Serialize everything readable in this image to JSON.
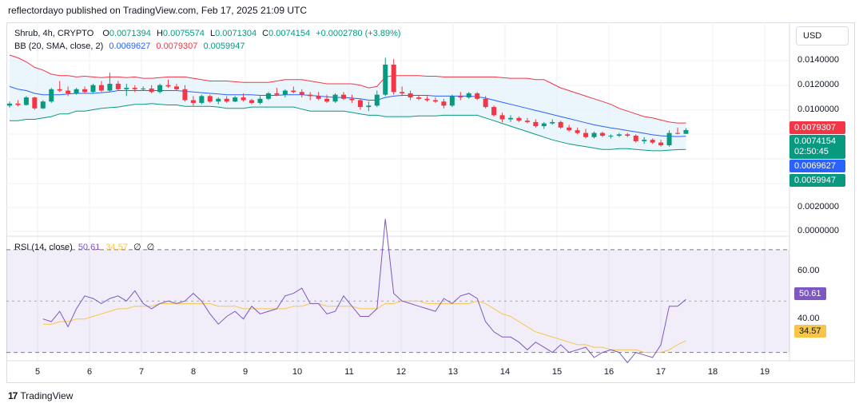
{
  "header": {
    "published": "reflectordayo published on TradingView.com, Feb 17, 2025 21:09 UTC"
  },
  "legend": {
    "symbol": "Shrub, 4h, CRYPTO",
    "o_label": "O",
    "o": "0.0071394",
    "h_label": "H",
    "h": "0.0075574",
    "l_label": "L",
    "l": "0.0071304",
    "c_label": "C",
    "c": "0.0074154",
    "change": "+0.0002780 (+3.89%)",
    "bb_label": "BB (20, SMA, close, 2)",
    "bb_basis": "0.0069627",
    "bb_upper": "0.0079307",
    "bb_lower": "0.0059947",
    "rsi_label": "RSI (14, close)",
    "rsi_value": "50.61",
    "rsi_ma": "34.57",
    "rsi_extra1": "∅",
    "rsi_extra2": "∅"
  },
  "currency": "USD",
  "price_axis": [
    "0.0140000",
    "0.0120000",
    "0.0100000",
    "0.0020000",
    "0.0000000"
  ],
  "badges": {
    "upper": "0.0079307",
    "last": "0.0074154",
    "countdown": "02:50:45",
    "basis": "0.0069627",
    "lower": "0.0059947",
    "rsi": "50.61",
    "rsi_ma": "34.57"
  },
  "rsi_axis": [
    "60.00",
    "40.00"
  ],
  "time_axis": [
    "5",
    "6",
    "7",
    "8",
    "9",
    "10",
    "11",
    "12",
    "13",
    "14",
    "15",
    "16",
    "17",
    "18",
    "19"
  ],
  "footer": {
    "brand": "TradingView",
    "logo": "17"
  },
  "colors": {
    "up": "#089981",
    "down": "#f23645",
    "basis": "#2962ff",
    "upper": "#f23645",
    "lower": "#089981",
    "rsi": "#7e57c2",
    "rsi_ma": "#f7c548",
    "band_fill": "#e3f1fb"
  },
  "chart_data": {
    "type": "candlestick",
    "candles": [
      [
        0.0092,
        0.0095,
        0.00905,
        0.00935
      ],
      [
        0.00935,
        0.0096,
        0.00915,
        0.00925
      ],
      [
        0.00925,
        0.0099,
        0.0092,
        0.0098
      ],
      [
        0.0098,
        0.00985,
        0.0089,
        0.009
      ],
      [
        0.009,
        0.0096,
        0.00895,
        0.0095
      ],
      [
        0.0095,
        0.0105,
        0.0094,
        0.0104
      ],
      [
        0.0104,
        0.011,
        0.0102,
        0.0103
      ],
      [
        0.0103,
        0.0106,
        0.0099,
        0.0101
      ],
      [
        0.0101,
        0.0105,
        0.01,
        0.0104
      ],
      [
        0.0104,
        0.0106,
        0.0101,
        0.0102
      ],
      [
        0.0102,
        0.0108,
        0.0101,
        0.0107
      ],
      [
        0.0107,
        0.011,
        0.0102,
        0.0103
      ],
      [
        0.0103,
        0.0116,
        0.0102,
        0.0108
      ],
      [
        0.0108,
        0.011,
        0.0103,
        0.0104
      ],
      [
        0.0104,
        0.0108,
        0.0099,
        0.0105
      ],
      [
        0.0105,
        0.0107,
        0.0102,
        0.0104
      ],
      [
        0.0104,
        0.0106,
        0.0103,
        0.01045
      ],
      [
        0.01045,
        0.0107,
        0.0101,
        0.0102
      ],
      [
        0.0102,
        0.0108,
        0.0101,
        0.0107
      ],
      [
        0.0107,
        0.0111,
        0.0105,
        0.0106
      ],
      [
        0.0106,
        0.0108,
        0.0103,
        0.0104
      ],
      [
        0.0104,
        0.0107,
        0.0095,
        0.0096
      ],
      [
        0.0096,
        0.0099,
        0.0092,
        0.0094
      ],
      [
        0.0094,
        0.01,
        0.0093,
        0.0099
      ],
      [
        0.0099,
        0.01,
        0.0094,
        0.0095
      ],
      [
        0.0095,
        0.0098,
        0.0093,
        0.0097
      ],
      [
        0.0097,
        0.0099,
        0.0094,
        0.0095
      ],
      [
        0.0095,
        0.0099,
        0.00945,
        0.0098
      ],
      [
        0.0098,
        0.0101,
        0.0095,
        0.0096
      ],
      [
        0.0096,
        0.0097,
        0.0093,
        0.0094
      ],
      [
        0.0094,
        0.0099,
        0.0093,
        0.0097
      ],
      [
        0.0097,
        0.0102,
        0.0096,
        0.0101
      ],
      [
        0.0101,
        0.0105,
        0.0099,
        0.01
      ],
      [
        0.01,
        0.0104,
        0.0098,
        0.0103
      ],
      [
        0.0103,
        0.0106,
        0.0101,
        0.0102
      ],
      [
        0.0102,
        0.0104,
        0.0098,
        0.01
      ],
      [
        0.01,
        0.0102,
        0.0096,
        0.0099
      ],
      [
        0.0099,
        0.0102,
        0.0096,
        0.0097
      ],
      [
        0.0097,
        0.01,
        0.0094,
        0.0095
      ],
      [
        0.0095,
        0.0101,
        0.0094,
        0.01
      ],
      [
        0.01,
        0.0102,
        0.0096,
        0.0097
      ],
      [
        0.0097,
        0.01,
        0.0094,
        0.0096
      ],
      [
        0.0096,
        0.0097,
        0.0089,
        0.0091
      ],
      [
        0.0091,
        0.0095,
        0.0088,
        0.0092
      ],
      [
        0.0092,
        0.0103,
        0.0091,
        0.01
      ],
      [
        0.01,
        0.0127,
        0.0099,
        0.0122
      ],
      [
        0.0122,
        0.0126,
        0.01,
        0.0102
      ],
      [
        0.0102,
        0.0106,
        0.0099,
        0.0101
      ],
      [
        0.0101,
        0.0103,
        0.0096,
        0.0098
      ],
      [
        0.0098,
        0.01,
        0.0096,
        0.0097
      ],
      [
        0.0097,
        0.0099,
        0.0095,
        0.0096
      ],
      [
        0.0096,
        0.0098,
        0.0094,
        0.0095
      ],
      [
        0.0095,
        0.0097,
        0.009,
        0.0092
      ],
      [
        0.0092,
        0.01,
        0.0091,
        0.0099
      ],
      [
        0.0099,
        0.0102,
        0.0096,
        0.0098
      ],
      [
        0.0098,
        0.0102,
        0.0097,
        0.0101
      ],
      [
        0.0101,
        0.0102,
        0.0096,
        0.0097
      ],
      [
        0.0097,
        0.0099,
        0.009,
        0.0091
      ],
      [
        0.0091,
        0.0092,
        0.0084,
        0.0085
      ],
      [
        0.0085,
        0.0087,
        0.008,
        0.0082
      ],
      [
        0.0082,
        0.0085,
        0.008,
        0.0083
      ],
      [
        0.0083,
        0.0084,
        0.008,
        0.0081
      ],
      [
        0.0081,
        0.0083,
        0.0079,
        0.008
      ],
      [
        0.008,
        0.0082,
        0.0076,
        0.0077
      ],
      [
        0.0077,
        0.008,
        0.0075,
        0.0079
      ],
      [
        0.0079,
        0.0082,
        0.0078,
        0.008
      ],
      [
        0.008,
        0.0081,
        0.0075,
        0.0076
      ],
      [
        0.0076,
        0.0078,
        0.0073,
        0.0074
      ],
      [
        0.0074,
        0.0076,
        0.0071,
        0.0072
      ],
      [
        0.0072,
        0.0075,
        0.0068,
        0.0069
      ],
      [
        0.0069,
        0.0073,
        0.0068,
        0.0072
      ],
      [
        0.0072,
        0.0073,
        0.0069,
        0.007
      ],
      [
        0.007,
        0.0071,
        0.0068,
        0.007
      ],
      [
        0.007,
        0.0072,
        0.0069,
        0.0071
      ],
      [
        0.0071,
        0.0072,
        0.0069,
        0.007
      ],
      [
        0.007,
        0.0071,
        0.0065,
        0.0066
      ],
      [
        0.0066,
        0.0069,
        0.0064,
        0.0067
      ],
      [
        0.0067,
        0.0068,
        0.0064,
        0.0065
      ],
      [
        0.0065,
        0.0067,
        0.0062,
        0.0063
      ],
      [
        0.0063,
        0.0074,
        0.0062,
        0.0072
      ],
      [
        0.0072,
        0.0076,
        0.0071,
        0.00714
      ],
      [
        0.0071394,
        0.0075574,
        0.0071304,
        0.0074154
      ]
    ],
    "bb_upper": [
      0.0129,
      0.0127,
      0.0124,
      0.012,
      0.0118,
      0.0115,
      0.0114,
      0.0114,
      0.0113,
      0.01135,
      0.0113,
      0.01125,
      0.0113,
      0.0113,
      0.01125,
      0.0113,
      0.0112,
      0.0112,
      0.01125,
      0.0113,
      0.0113,
      0.0113,
      0.0112,
      0.0111,
      0.011,
      0.011,
      0.011,
      0.01095,
      0.0109,
      0.0109,
      0.0109,
      0.0109,
      0.011,
      0.0111,
      0.0111,
      0.0111,
      0.011,
      0.0109,
      0.0108,
      0.0108,
      0.0108,
      0.0108,
      0.0107,
      0.0105,
      0.0106,
      0.0113,
      0.0114,
      0.0114,
      0.0114,
      0.0114,
      0.01135,
      0.01135,
      0.0113,
      0.0113,
      0.0113,
      0.0113,
      0.0113,
      0.0113,
      0.0113,
      0.01125,
      0.0112,
      0.0112,
      0.0112,
      0.0111,
      0.0111,
      0.0108,
      0.0105,
      0.0103,
      0.0101,
      0.0099,
      0.0097,
      0.0095,
      0.0093,
      0.009,
      0.0088,
      0.0086,
      0.0084,
      0.0083,
      0.00815,
      0.008,
      0.00793,
      0.0079307
    ],
    "bb_basis": [
      0.0106,
      0.0104,
      0.0103,
      0.0101,
      0.01,
      0.01,
      0.01,
      0.01005,
      0.0101,
      0.0101,
      0.0101,
      0.01015,
      0.0102,
      0.0103,
      0.0103,
      0.0103,
      0.0103,
      0.0103,
      0.0103,
      0.0103,
      0.0103,
      0.01025,
      0.0102,
      0.01015,
      0.0101,
      0.01005,
      0.01,
      0.01,
      0.01,
      0.01,
      0.00995,
      0.00995,
      0.00995,
      0.01,
      0.01,
      0.01,
      0.00995,
      0.0099,
      0.00985,
      0.0098,
      0.0098,
      0.00975,
      0.0097,
      0.0096,
      0.0096,
      0.0098,
      0.0099,
      0.00995,
      0.00995,
      0.00995,
      0.00995,
      0.0099,
      0.0099,
      0.0099,
      0.0099,
      0.0099,
      0.00985,
      0.00975,
      0.0096,
      0.00945,
      0.0093,
      0.00915,
      0.009,
      0.00885,
      0.0087,
      0.00855,
      0.0084,
      0.00825,
      0.0081,
      0.00795,
      0.0078,
      0.00768,
      0.00757,
      0.00748,
      0.00738,
      0.00728,
      0.00718,
      0.00707,
      0.007,
      0.00696,
      0.00694,
      0.0069627
    ],
    "bb_lower": [
      0.0081,
      0.0081,
      0.0082,
      0.0082,
      0.0083,
      0.0084,
      0.0086,
      0.0086,
      0.0088,
      0.0088,
      0.0089,
      0.009,
      0.00905,
      0.0091,
      0.0092,
      0.0093,
      0.0093,
      0.00935,
      0.0093,
      0.00925,
      0.00925,
      0.00915,
      0.00915,
      0.00915,
      0.00915,
      0.0091,
      0.009,
      0.009,
      0.009,
      0.0091,
      0.0091,
      0.0091,
      0.0091,
      0.0091,
      0.0091,
      0.00895,
      0.0088,
      0.0088,
      0.0088,
      0.0088,
      0.0088,
      0.0087,
      0.0086,
      0.0085,
      0.0085,
      0.0084,
      0.0084,
      0.0084,
      0.0084,
      0.00845,
      0.00845,
      0.00845,
      0.0085,
      0.0085,
      0.0085,
      0.0085,
      0.0085,
      0.0083,
      0.0081,
      0.0079,
      0.0077,
      0.0075,
      0.0073,
      0.0071,
      0.0069,
      0.0067,
      0.00655,
      0.0064,
      0.0063,
      0.0062,
      0.0061,
      0.006,
      0.006,
      0.00605,
      0.00605,
      0.006,
      0.00595,
      0.0059,
      0.0059,
      0.00595,
      0.00598,
      0.0059947
    ],
    "rsi": [
      43,
      42,
      46,
      40,
      47,
      52,
      51,
      49,
      51,
      52,
      50,
      54,
      49,
      47,
      49,
      50,
      49,
      50,
      53,
      50,
      45,
      41,
      44,
      46,
      43,
      48,
      45,
      46,
      47,
      52,
      53,
      55,
      49,
      49,
      45,
      46,
      52,
      48,
      44,
      44,
      47,
      82,
      53,
      50,
      49,
      48,
      47,
      46,
      51,
      49,
      52,
      53,
      51,
      42,
      38,
      36,
      36,
      34,
      31,
      34,
      32,
      30,
      33,
      30,
      31,
      32,
      28,
      30,
      31,
      30,
      26,
      30,
      29,
      28,
      33,
      48,
      48,
      50.61
    ],
    "rsi_ma": [
      41,
      41,
      42,
      42,
      43,
      43,
      44,
      45,
      46,
      47,
      47,
      48,
      48,
      48,
      49,
      49,
      49,
      49,
      49,
      49,
      49,
      48,
      48,
      48,
      47,
      47,
      47,
      47,
      47,
      47,
      48,
      48,
      49,
      49,
      48,
      48,
      48,
      48,
      47,
      47,
      47,
      49,
      49,
      50,
      50,
      50,
      49,
      49,
      49,
      49,
      49,
      49,
      50,
      49,
      47,
      45,
      44,
      42,
      40,
      38,
      37,
      36,
      35,
      34,
      33,
      33,
      32,
      32,
      31,
      31,
      31,
      31,
      30,
      30,
      30,
      31,
      33,
      34.57
    ],
    "rsi_bands": [
      70,
      50,
      30
    ],
    "rsi_range": [
      28,
      74
    ],
    "y_range": [
      0,
      0.015
    ]
  }
}
